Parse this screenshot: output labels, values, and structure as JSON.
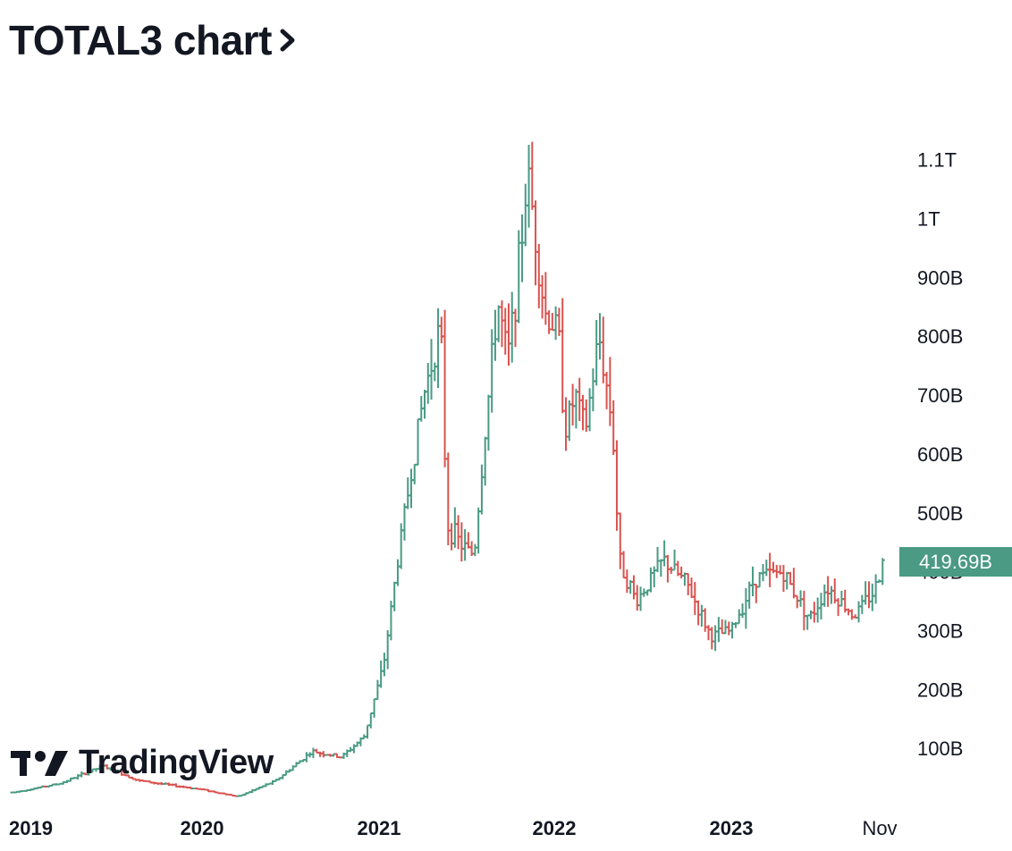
{
  "header": {
    "title": "TOTAL3 chart"
  },
  "price_badge": {
    "value": "419.69B",
    "color": "#4a9a84"
  },
  "logo": {
    "text": "TradingView"
  },
  "colors": {
    "up": "#4a9a84",
    "down": "#d9534f",
    "text": "#131722"
  },
  "chart_data": {
    "type": "ohlc",
    "symbol": "TOTAL3",
    "interval": "weekly",
    "y_axis_labels": [
      "100B",
      "200B",
      "300B",
      "400B",
      "500B",
      "600B",
      "700B",
      "800B",
      "900B",
      "1T",
      "1.1T"
    ],
    "y_axis_values": [
      100,
      200,
      300,
      400,
      500,
      600,
      700,
      800,
      900,
      1000,
      1100
    ],
    "y_unit": "billions USD",
    "x_axis_labels": [
      "2019",
      "2020",
      "2021",
      "2022",
      "2023",
      "Nov"
    ],
    "x_axis_dates": [
      "2019-01-01",
      "2020-01-01",
      "2021-01-01",
      "2022-01-01",
      "2023-01-01",
      "2023-11-01"
    ],
    "last_price": 419.69,
    "anchor_closes": [
      [
        "2019-01-01",
        25
      ],
      [
        "2019-04-01",
        40
      ],
      [
        "2019-06-24",
        70
      ],
      [
        "2019-09-01",
        45
      ],
      [
        "2019-12-31",
        30
      ],
      [
        "2020-03-15",
        18
      ],
      [
        "2020-06-01",
        45
      ],
      [
        "2020-08-15",
        95
      ],
      [
        "2020-10-15",
        85
      ],
      [
        "2020-12-01",
        120
      ],
      [
        "2021-01-10",
        240
      ],
      [
        "2021-02-14",
        450
      ],
      [
        "2021-03-07",
        560
      ],
      [
        "2021-04-04",
        700
      ],
      [
        "2021-05-09",
        820
      ],
      [
        "2021-05-23",
        480
      ],
      [
        "2021-06-27",
        440
      ],
      [
        "2021-07-18",
        430
      ],
      [
        "2021-08-08",
        620
      ],
      [
        "2021-09-05",
        860
      ],
      [
        "2021-09-26",
        760
      ],
      [
        "2021-10-17",
        900
      ],
      [
        "2021-11-07",
        1080
      ],
      [
        "2021-12-12",
        840
      ],
      [
        "2022-01-09",
        810
      ],
      [
        "2022-01-23",
        640
      ],
      [
        "2022-02-13",
        700
      ],
      [
        "2022-03-06",
        640
      ],
      [
        "2022-04-03",
        800
      ],
      [
        "2022-05-01",
        650
      ],
      [
        "2022-05-15",
        420
      ],
      [
        "2022-06-19",
        350
      ],
      [
        "2022-08-14",
        420
      ],
      [
        "2022-10-01",
        380
      ],
      [
        "2022-11-20",
        290
      ],
      [
        "2023-01-01",
        300
      ],
      [
        "2023-02-19",
        390
      ],
      [
        "2023-04-16",
        400
      ],
      [
        "2023-06-11",
        320
      ],
      [
        "2023-07-16",
        375
      ],
      [
        "2023-09-10",
        325
      ],
      [
        "2023-10-22",
        370
      ],
      [
        "2023-11-12",
        419.69
      ]
    ]
  }
}
